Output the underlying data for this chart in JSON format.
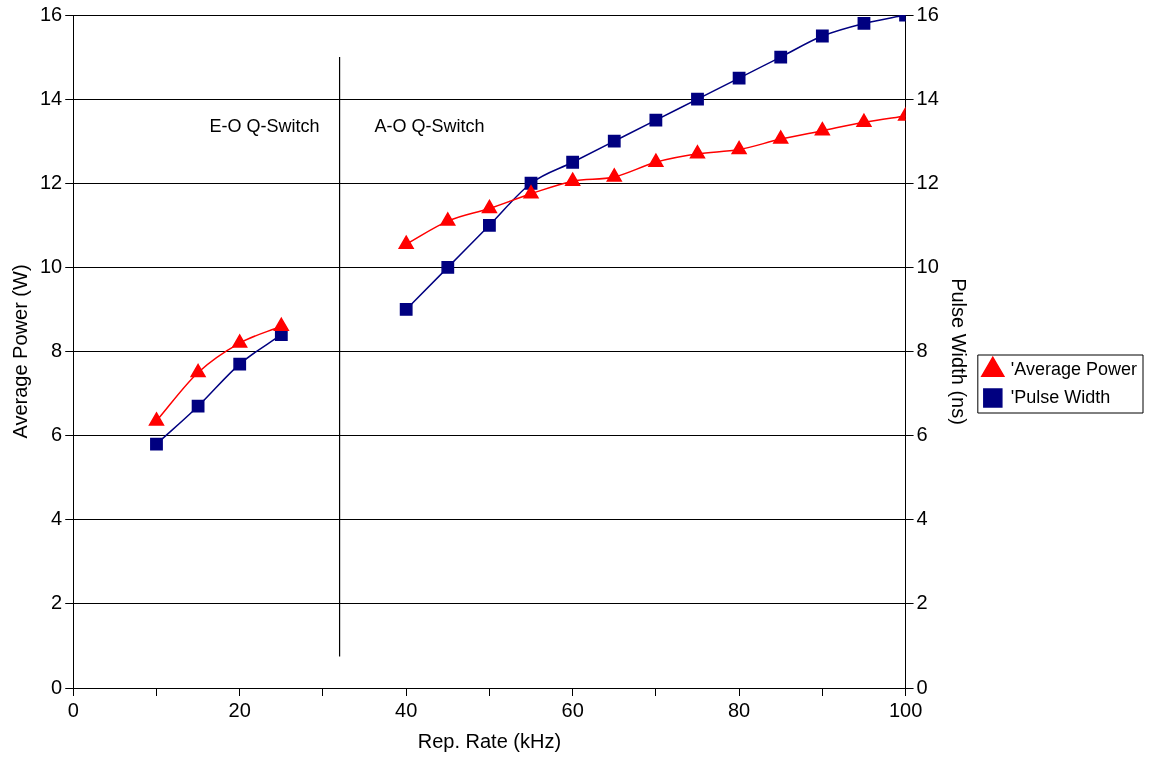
{
  "chart_data": {
    "type": "line",
    "xlabel": "Rep. Rate (kHz)",
    "ylabel": "Average Power (W)",
    "y2label": "Pulse Width (ns)",
    "xlim": [
      0,
      100
    ],
    "xticks": [
      0,
      {
        "value": 10,
        "label": null
      },
      20,
      {
        "value": 30,
        "label": null
      },
      40,
      {
        "value": 50,
        "label": null
      },
      60,
      {
        "value": 70,
        "label": null
      },
      80,
      {
        "value": 90,
        "label": null
      },
      100
    ],
    "ylim": [
      0,
      16
    ],
    "yticks": [
      0,
      2,
      4,
      6,
      8,
      10,
      12,
      14,
      16
    ],
    "y2lim": [
      0,
      16
    ],
    "y2ticks": [
      0,
      2,
      4,
      6,
      8,
      10,
      12,
      14,
      16
    ],
    "grid": "y",
    "legend": "right",
    "series": [
      {
        "name": "'Average Power",
        "color": "#ff0000",
        "marker": "triangle",
        "x": [
          10,
          15,
          20,
          25,
          null,
          40,
          45,
          50,
          55,
          60,
          65,
          70,
          75,
          80,
          85,
          90,
          95,
          100
        ],
        "values": [
          6.35,
          7.5,
          8.2,
          8.6,
          null,
          10.55,
          11.1,
          11.4,
          11.75,
          12.05,
          12.15,
          12.5,
          12.7,
          12.8,
          13.05,
          13.25,
          13.45,
          13.6
        ]
      },
      {
        "name": "'Pulse Width",
        "color": "#000080",
        "marker": "square",
        "axis": "y2",
        "x": [
          10,
          15,
          20,
          25,
          null,
          40,
          45,
          50,
          55,
          60,
          65,
          70,
          75,
          80,
          85,
          90,
          95,
          100
        ],
        "values": [
          5.8,
          6.7,
          7.7,
          8.4,
          null,
          9,
          10,
          11,
          12,
          12.5,
          13,
          13.5,
          14,
          14.5,
          15,
          15.5,
          15.8,
          16
        ]
      }
    ],
    "ref_lines": [
      {
        "axis": "x",
        "value": 32,
        "color": "#000000"
      }
    ],
    "annotations": [
      "E-O Q-Switch",
      "A-O Q-Switch"
    ]
  }
}
